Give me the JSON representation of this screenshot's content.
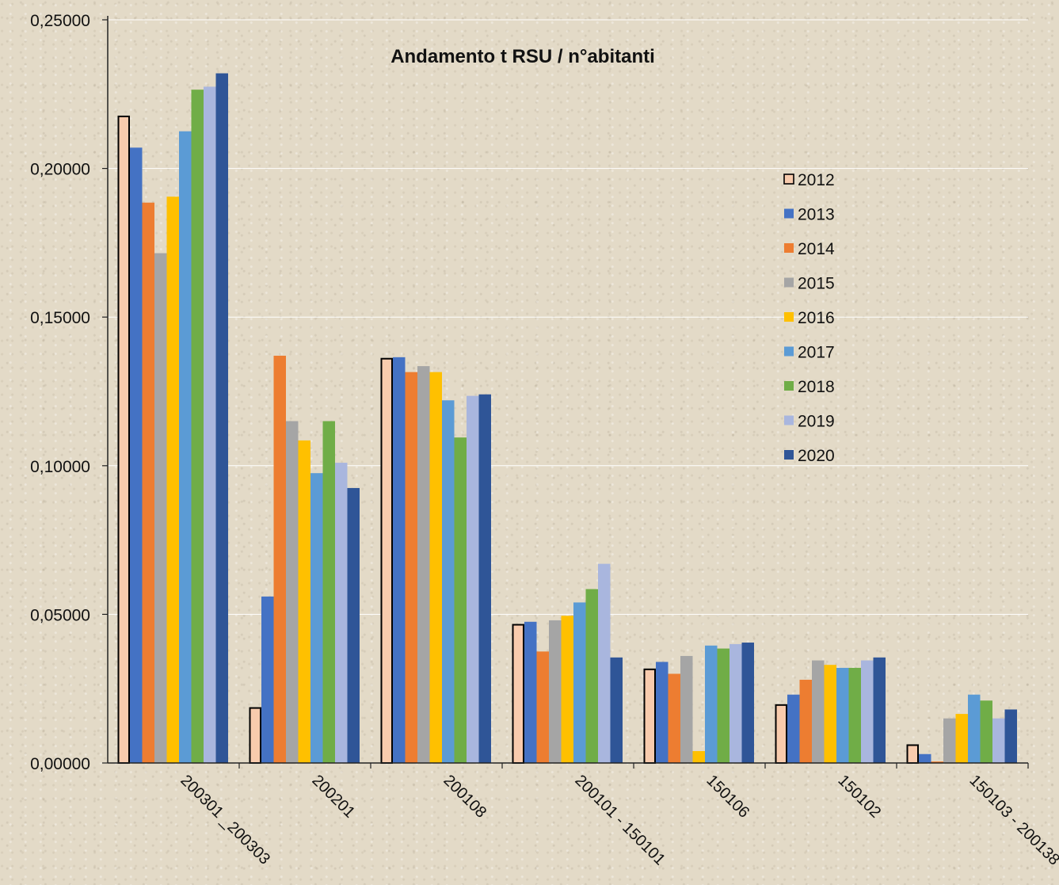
{
  "chart_data": {
    "type": "bar",
    "title": "Andamento t RSU / n°abitanti",
    "xlabel": "",
    "ylabel": "",
    "ylim": [
      0,
      0.25
    ],
    "yticks": [
      "0,00000",
      "0,05000",
      "0,10000",
      "0,15000",
      "0,20000",
      "0,25000"
    ],
    "grid": true,
    "legend_position": "right",
    "categories": [
      "200301 _200303",
      "200201",
      "200108",
      "200101 - 150101",
      "150106",
      "150102",
      "150103 - 200138"
    ],
    "series": [
      {
        "name": "2012",
        "color": "#f8cbad",
        "outline": "#000000",
        "values": [
          0.2175,
          0.0185,
          0.136,
          0.0465,
          0.0315,
          0.0195,
          0.006
        ]
      },
      {
        "name": "2013",
        "color": "#4472c4",
        "values": [
          0.207,
          0.056,
          0.1365,
          0.0475,
          0.034,
          0.023,
          0.003
        ]
      },
      {
        "name": "2014",
        "color": "#ed7d31",
        "values": [
          0.1885,
          0.137,
          0.1315,
          0.0375,
          0.03,
          0.028,
          0.0005
        ]
      },
      {
        "name": "2015",
        "color": "#a5a5a5",
        "values": [
          0.1715,
          0.115,
          0.1335,
          0.048,
          0.036,
          0.0345,
          0.015
        ]
      },
      {
        "name": "2016",
        "color": "#ffc000",
        "values": [
          0.1905,
          0.1085,
          0.1315,
          0.0495,
          0.004,
          0.033,
          0.0165
        ]
      },
      {
        "name": "2017",
        "color": "#5b9bd5",
        "values": [
          0.2125,
          0.0975,
          0.122,
          0.054,
          0.0395,
          0.032,
          0.023
        ]
      },
      {
        "name": "2018",
        "color": "#70ad47",
        "values": [
          0.2265,
          0.115,
          0.1095,
          0.0585,
          0.0385,
          0.032,
          0.021
        ]
      },
      {
        "name": "2019",
        "color": "#a9b6de",
        "values": [
          0.2275,
          0.101,
          0.1235,
          0.067,
          0.04,
          0.0345,
          0.015
        ]
      },
      {
        "name": "2020",
        "color": "#2f5597",
        "values": [
          0.232,
          0.0925,
          0.124,
          0.0355,
          0.0405,
          0.0355,
          0.018
        ]
      }
    ]
  }
}
